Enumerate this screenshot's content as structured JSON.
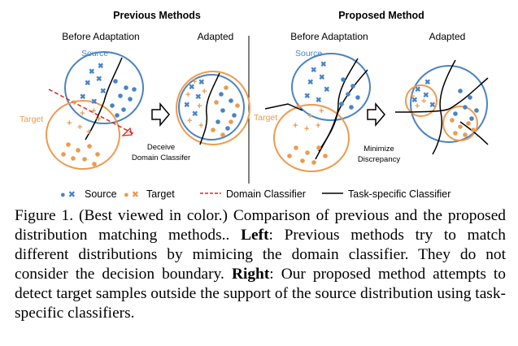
{
  "figure": {
    "left_title": "Previous Methods",
    "right_title": "Proposed Method",
    "before_adaptation": "Before Adaptation",
    "adapted": "Adapted",
    "source_label": "Source",
    "target_label": "Target",
    "annotation_left_1": "Deceive",
    "annotation_left_2": "Domain Classifer",
    "annotation_right_1": "Minimize",
    "annotation_right_2": "Discrepancy",
    "colors": {
      "source": "#4a83c4",
      "target": "#ee9a4d",
      "domain_classifier": "#e0261d",
      "classifier": "#000000"
    }
  },
  "legend": {
    "source_markers": "● ✖",
    "source": "Source",
    "target_markers": "● ✖",
    "target": "Target",
    "domain_classifier": "Domain Classifier",
    "task_classifier": "Task-specific Classifier"
  },
  "caption": {
    "intro": "Figure 1. (Best viewed in color.) Comparison of previous and the proposed distribution matching methods..",
    "left_label": "Left",
    "left_text": ": Previous methods try to match different distributions by mimicing the domain classifier. They do not consider the decision boundary.",
    "right_label": "Right",
    "right_text": ": Our proposed method attempts to detect target samples outside the support of the source distribution using task-specific classifiers."
  }
}
